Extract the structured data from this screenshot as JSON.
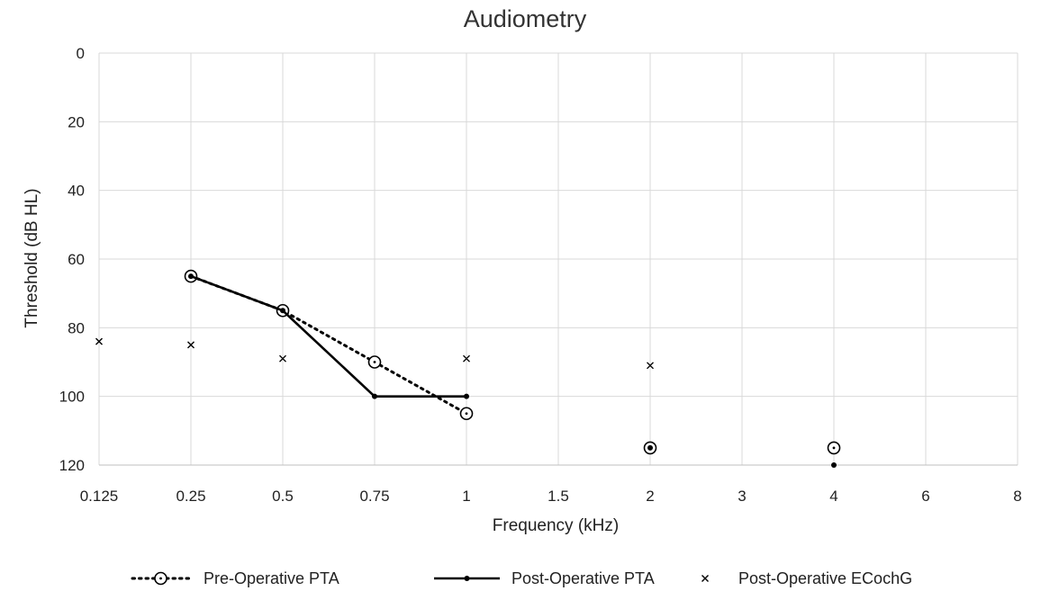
{
  "chart_data": {
    "type": "line",
    "title": "Audiometry",
    "xlabel": "Frequency (kHz)",
    "ylabel": "Threshold (dB HL)",
    "categories": [
      "0.125",
      "0.25",
      "0.5",
      "0.75",
      "1",
      "1.5",
      "2",
      "3",
      "4",
      "6",
      "8"
    ],
    "yticks": [
      "0",
      "20",
      "40",
      "60",
      "80",
      "100",
      "120"
    ],
    "ylim": [
      0,
      120
    ],
    "y_inverted": true,
    "grid": true,
    "legend_position": "bottom",
    "series": [
      {
        "name": "Pre-Operative PTA",
        "style": "dotted-line-open-circle",
        "color": "#000000",
        "points": [
          {
            "x": "0.25",
            "y": 65
          },
          {
            "x": "0.5",
            "y": 75
          },
          {
            "x": "0.75",
            "y": 90
          },
          {
            "x": "1",
            "y": 105
          },
          {
            "x": "2",
            "y": 115
          },
          {
            "x": "4",
            "y": 115
          }
        ],
        "connected_until": "1"
      },
      {
        "name": "Post-Operative PTA",
        "style": "solid-line-filled-dot",
        "color": "#000000",
        "points": [
          {
            "x": "0.25",
            "y": 65
          },
          {
            "x": "0.5",
            "y": 75
          },
          {
            "x": "0.75",
            "y": 100
          },
          {
            "x": "1",
            "y": 100
          },
          {
            "x": "2",
            "y": 115
          },
          {
            "x": "4",
            "y": 120
          }
        ],
        "connected_until": "1"
      },
      {
        "name": "Post-Operative ECochG",
        "style": "cross-marker",
        "color": "#000000",
        "points": [
          {
            "x": "0.125",
            "y": 84
          },
          {
            "x": "0.25",
            "y": 85
          },
          {
            "x": "0.5",
            "y": 89
          },
          {
            "x": "1",
            "y": 89
          },
          {
            "x": "2",
            "y": 91
          }
        ]
      }
    ]
  }
}
